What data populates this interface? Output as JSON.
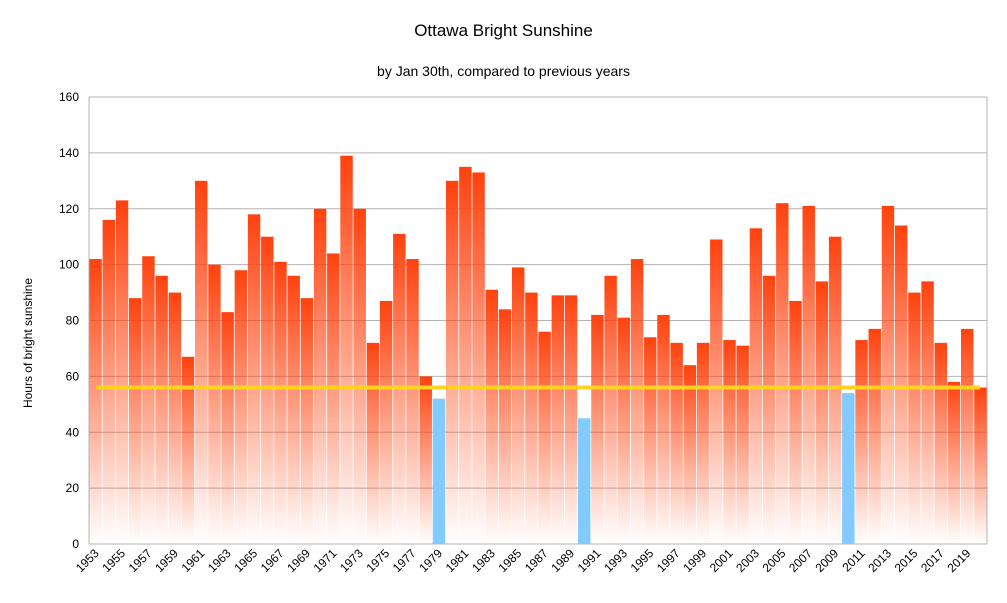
{
  "chart_data": {
    "type": "bar",
    "title": "Ottawa Bright Sunshine",
    "subtitle": "by Jan 30th, compared to previous years",
    "xlabel": "",
    "ylabel": "Hours of bright sunshine",
    "ylim": [
      0,
      160
    ],
    "yticks": [
      0,
      20,
      40,
      60,
      80,
      100,
      120,
      140,
      160
    ],
    "grid": true,
    "categories": [
      "1953",
      "1954",
      "1955",
      "1956",
      "1957",
      "1958",
      "1959",
      "1960",
      "1961",
      "1962",
      "1963",
      "1964",
      "1965",
      "1966",
      "1967",
      "1968",
      "1969",
      "1970",
      "1971",
      "1972",
      "1973",
      "1974",
      "1975",
      "1976",
      "1977",
      "1978",
      "1979",
      "1980",
      "1981",
      "1982",
      "1983",
      "1984",
      "1985",
      "1986",
      "1987",
      "1988",
      "1989",
      "1990",
      "1991",
      "1992",
      "1993",
      "1994",
      "1995",
      "1996",
      "1997",
      "1998",
      "1999",
      "2000",
      "2001",
      "2002",
      "2003",
      "2004",
      "2005",
      "2006",
      "2007",
      "2008",
      "2009",
      "2010",
      "2011",
      "2012",
      "2013",
      "2014",
      "2015",
      "2016",
      "2017",
      "2018",
      "2019",
      "2020"
    ],
    "tick_labels": [
      "1953",
      "1955",
      "1957",
      "1959",
      "1961",
      "1963",
      "1965",
      "1967",
      "1969",
      "1971",
      "1973",
      "1975",
      "1977",
      "1979",
      "1981",
      "1983",
      "1985",
      "1987",
      "1989",
      "1991",
      "1993",
      "1995",
      "1997",
      "1999",
      "2001",
      "2003",
      "2005",
      "2007",
      "2009",
      "2011",
      "2013",
      "2015",
      "2017",
      "2019"
    ],
    "values": [
      102,
      116,
      123,
      88,
      103,
      96,
      90,
      67,
      130,
      100,
      83,
      98,
      118,
      110,
      101,
      96,
      88,
      120,
      104,
      139,
      120,
      72,
      87,
      111,
      102,
      60,
      52,
      130,
      135,
      133,
      91,
      84,
      99,
      90,
      76,
      89,
      89,
      45,
      82,
      96,
      81,
      102,
      74,
      82,
      72,
      64,
      72,
      109,
      73,
      71,
      113,
      96,
      122,
      87,
      121,
      94,
      110,
      54,
      73,
      77,
      121,
      114,
      90,
      94,
      72,
      58,
      77,
      56
    ],
    "reference_line": {
      "value": 56,
      "color": "#ffd320"
    },
    "colors": {
      "above": "#ff420e",
      "below": "#83caff",
      "grid": "#b3b3b3"
    }
  }
}
